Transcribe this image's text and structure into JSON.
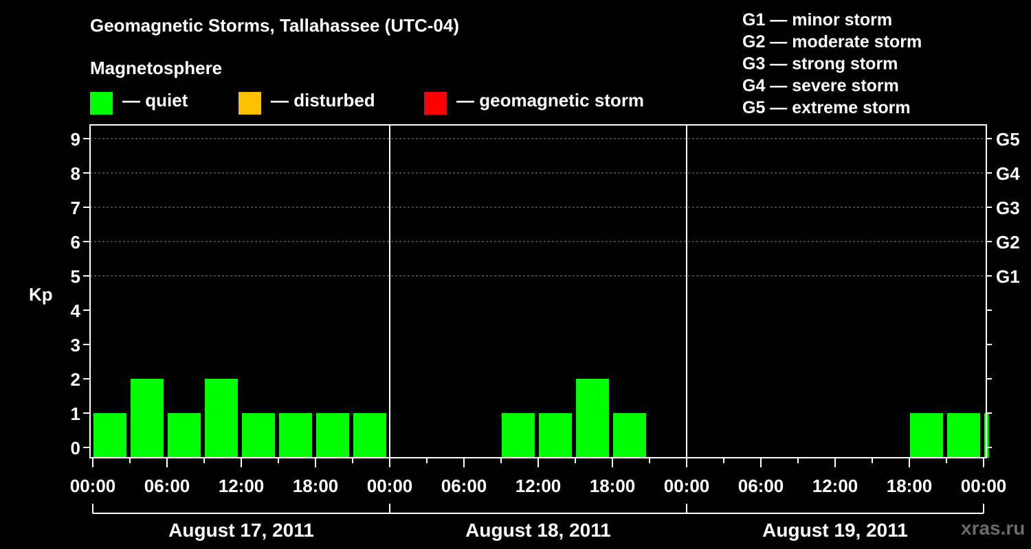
{
  "chart_data": {
    "type": "bar",
    "title": "Geomagnetic Storms, Tallahassee (UTC-04)",
    "subtitle": "Magnetosphere",
    "ylabel": "Kp",
    "ylim": [
      0,
      9
    ],
    "yticks": [
      "0",
      "1",
      "2",
      "3",
      "4",
      "5",
      "6",
      "7",
      "8",
      "9"
    ],
    "storm_levels": [
      {
        "label": "G1",
        "kp": 5
      },
      {
        "label": "G2",
        "kp": 6
      },
      {
        "label": "G3",
        "kp": 7
      },
      {
        "label": "G4",
        "kp": 8
      },
      {
        "label": "G5",
        "kp": 9
      }
    ],
    "xticks": [
      "00:00",
      "06:00",
      "12:00",
      "18:00",
      "00:00",
      "06:00",
      "12:00",
      "18:00",
      "00:00",
      "06:00",
      "12:00",
      "18:00",
      "00:00"
    ],
    "days": [
      "August 17, 2011",
      "August 18, 2011",
      "August 19, 2011"
    ],
    "legend": [
      {
        "label": "— quiet",
        "color": "#00ff00"
      },
      {
        "label": "— disturbed",
        "color": "#ffc000"
      },
      {
        "label": "— geomagnetic storm",
        "color": "#ff0000"
      }
    ],
    "storm_legend": [
      "G1 — minor storm",
      "G2 — moderate storm",
      "G3 — strong storm",
      "G4 — severe storm",
      "G5 — extreme storm"
    ],
    "grid": "dashed at Kp 5-9",
    "bars": [
      {
        "start_hour": 0,
        "end_hour": 3,
        "kp": 1
      },
      {
        "start_hour": 3,
        "end_hour": 6,
        "kp": 2
      },
      {
        "start_hour": 6,
        "end_hour": 9,
        "kp": 1
      },
      {
        "start_hour": 9,
        "end_hour": 12,
        "kp": 2
      },
      {
        "start_hour": 12,
        "end_hour": 15,
        "kp": 1
      },
      {
        "start_hour": 15,
        "end_hour": 18,
        "kp": 1
      },
      {
        "start_hour": 18,
        "end_hour": 21,
        "kp": 1
      },
      {
        "start_hour": 21,
        "end_hour": 24,
        "kp": 1
      },
      {
        "start_hour": 33,
        "end_hour": 36,
        "kp": 1
      },
      {
        "start_hour": 36,
        "end_hour": 39,
        "kp": 1
      },
      {
        "start_hour": 39,
        "end_hour": 42,
        "kp": 2
      },
      {
        "start_hour": 42,
        "end_hour": 45,
        "kp": 1
      },
      {
        "start_hour": 66,
        "end_hour": 69,
        "kp": 1
      },
      {
        "start_hour": 69,
        "end_hour": 72,
        "kp": 1
      },
      {
        "start_hour": 72,
        "end_hour": 72.7,
        "kp": 1
      }
    ],
    "bar_color": "#00ff00"
  },
  "watermark": "xras.ru"
}
